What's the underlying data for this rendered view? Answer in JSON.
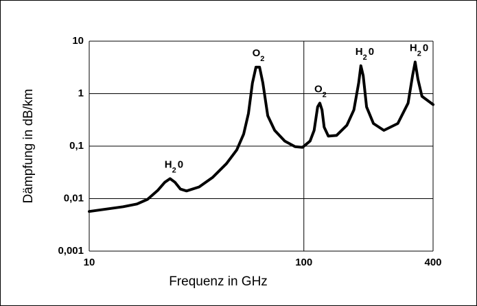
{
  "chart_data": {
    "type": "line",
    "x_label": "Frequenz in GHz",
    "y_label": "Dämpfung in dB/km",
    "xlog": true,
    "ylog": true,
    "grid": true,
    "xlim": [
      10,
      400
    ],
    "ylim": [
      0.001,
      10
    ],
    "xticks": [
      10,
      100,
      400
    ],
    "yticks": [
      10,
      1,
      {
        "value": 0.1,
        "label": "0,1"
      },
      {
        "value": 0.01,
        "label": "0,01"
      },
      {
        "value": 0.001,
        "label": "0,001"
      }
    ],
    "series": [
      {
        "color": "#000000",
        "x": [
          10,
          14.4,
          16.7,
          18.7,
          20.9,
          22.5,
          23.8,
          25.1,
          26.6,
          28.4,
          32.5,
          37.6,
          43.6,
          48.7,
          52.4,
          55.2,
          57.6,
          59.8,
          62.2,
          64.4,
          67.9,
          73.1,
          81.5,
          91,
          98.6,
          106.9,
          111.7,
          115.9,
          118.7,
          121.5,
          124.3,
          130,
          142,
          158.7,
          171,
          180,
          184.3,
          189,
          196,
          211,
          236,
          274,
          306,
          321,
          330,
          340,
          355,
          400
        ],
        "values": [
          0.0057,
          0.007,
          0.0079,
          0.0097,
          0.0145,
          0.0205,
          0.024,
          0.0205,
          0.0152,
          0.014,
          0.0167,
          0.0254,
          0.0465,
          0.085,
          0.17,
          0.42,
          1.6,
          3.2,
          3.2,
          1.6,
          0.38,
          0.2,
          0.125,
          0.098,
          0.095,
          0.125,
          0.2,
          0.56,
          0.66,
          0.49,
          0.23,
          0.155,
          0.16,
          0.25,
          0.49,
          1.6,
          3.4,
          2.2,
          0.56,
          0.27,
          0.2,
          0.27,
          0.66,
          2.2,
          4.0,
          1.9,
          0.89,
          0.62
        ]
      }
    ],
    "annotations": [
      {
        "text": "H",
        "sub": "2",
        "tail": "0",
        "x": 23.8
      },
      {
        "text": "O",
        "sub": "2",
        "x": 61
      },
      {
        "text": "O",
        "sub": "2",
        "x": 118.7
      },
      {
        "text": "H",
        "sub": "2",
        "tail": "0",
        "x": 184.3
      },
      {
        "text": "H",
        "sub": "2",
        "tail": "0",
        "x": 330
      }
    ]
  }
}
